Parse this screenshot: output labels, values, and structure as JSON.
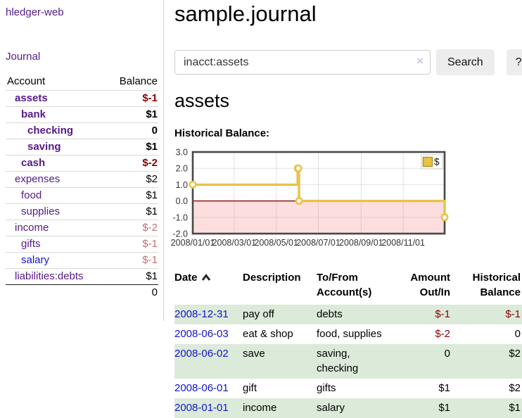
{
  "colors": {
    "link_purple": "#551a8b",
    "link_blue": "#1414cc",
    "negative_strong": "#8b0000",
    "negative_soft": "#c0716f",
    "row_stripe_green": "#dcead9"
  },
  "app": {
    "brand": "hledger-web"
  },
  "sidebar": {
    "journal_link": "Journal",
    "accounts_table": {
      "account_header": "Account",
      "balance_header": "Balance",
      "rows": [
        {
          "name": "assets",
          "balance": "$-1",
          "indent": 1,
          "matched": true,
          "negative": true,
          "visited": true
        },
        {
          "name": "bank",
          "balance": "$1",
          "indent": 2,
          "matched": true,
          "negative": false,
          "visited": true
        },
        {
          "name": "checking",
          "balance": "0",
          "indent": 3,
          "matched": true,
          "negative": false,
          "visited": true
        },
        {
          "name": "saving",
          "balance": "$1",
          "indent": 3,
          "matched": true,
          "negative": false,
          "visited": true
        },
        {
          "name": "cash",
          "balance": "$-2",
          "indent": 2,
          "matched": true,
          "negative": true,
          "visited": true
        },
        {
          "name": "expenses",
          "balance": "$2",
          "indent": 1,
          "matched": false,
          "negative": false,
          "visited": true
        },
        {
          "name": "food",
          "balance": "$1",
          "indent": 2,
          "matched": false,
          "negative": false,
          "visited": true
        },
        {
          "name": "supplies",
          "balance": "$1",
          "indent": 2,
          "matched": false,
          "negative": false,
          "visited": true
        },
        {
          "name": "income",
          "balance": "$-2",
          "indent": 1,
          "matched": false,
          "negative": true,
          "visited": true
        },
        {
          "name": "gifts",
          "balance": "$-1",
          "indent": 2,
          "matched": false,
          "negative": true,
          "visited": true
        },
        {
          "name": "salary",
          "balance": "$-1",
          "indent": 2,
          "matched": false,
          "negative": true,
          "visited": false
        },
        {
          "name": "liabilities:debts",
          "balance": "$1",
          "indent": 1,
          "matched": false,
          "negative": false,
          "visited": true
        }
      ],
      "total": "0"
    }
  },
  "main": {
    "title": "sample.journal",
    "search": {
      "value": "inacct:assets",
      "clear_icon": "×",
      "button_label": "Search",
      "help_label": "?"
    },
    "account_heading": "assets",
    "chart_label": "Historical Balance:"
  },
  "chart_data": {
    "type": "line",
    "title": "Historical Balance",
    "step": true,
    "grid": true,
    "legend": [
      {
        "label": "$",
        "color": "#eac43f",
        "border": "#b5922c"
      }
    ],
    "legend_position": "top-right",
    "ylim": [
      -2,
      3
    ],
    "y_ticks": [
      3.0,
      2.0,
      1.0,
      0.0,
      -1.0,
      -2.0
    ],
    "x_start": "2008-01-01",
    "x_end": "2008-12-31",
    "x_ticks": [
      {
        "date": "2008-01-01",
        "label": "2008/01/01"
      },
      {
        "date": "2008-03-01",
        "label": "2008/03/01"
      },
      {
        "date": "2008-05-01",
        "label": "2008/05/01"
      },
      {
        "date": "2008-07-01",
        "label": "2008/07/01"
      },
      {
        "date": "2008-09-01",
        "label": "2008/09/01"
      },
      {
        "date": "2008-11-01",
        "label": "2008/11/01"
      }
    ],
    "series": [
      {
        "name": "$",
        "color": "#e8c24a",
        "points": [
          [
            "2008-01-01",
            1
          ],
          [
            "2008-06-01",
            2
          ],
          [
            "2008-06-02",
            2
          ],
          [
            "2008-06-03",
            0
          ],
          [
            "2008-12-31",
            -1
          ]
        ]
      }
    ],
    "negative_region_color": "#fcdede",
    "zero_line_color": "#8b0000",
    "plot_border_color": "#484848",
    "grid_color": "rgba(150,150,150,0.28)"
  },
  "transactions": {
    "headers": [
      "Date",
      "Description",
      "To/From Account(s)",
      "Amount Out/In",
      "Historical Balance"
    ],
    "rows": [
      {
        "date": "2008-12-31",
        "description": "pay off",
        "accounts": "debts",
        "amount": "$-1",
        "amount_negative": true,
        "balance": "$-1",
        "balance_negative": true
      },
      {
        "date": "2008-06-03",
        "description": "eat & shop",
        "accounts": "food, supplies",
        "amount": "$-2",
        "amount_negative": true,
        "balance": "0",
        "balance_negative": false
      },
      {
        "date": "2008-06-02",
        "description": "save",
        "accounts": "saving, checking",
        "amount": "0",
        "amount_negative": false,
        "balance": "$2",
        "balance_negative": false
      },
      {
        "date": "2008-06-01",
        "description": "gift",
        "accounts": "gifts",
        "amount": "$1",
        "amount_negative": false,
        "balance": "$2",
        "balance_negative": false
      },
      {
        "date": "2008-01-01",
        "description": "income",
        "accounts": "salary",
        "amount": "$1",
        "amount_negative": false,
        "balance": "$1",
        "balance_negative": false
      }
    ]
  }
}
